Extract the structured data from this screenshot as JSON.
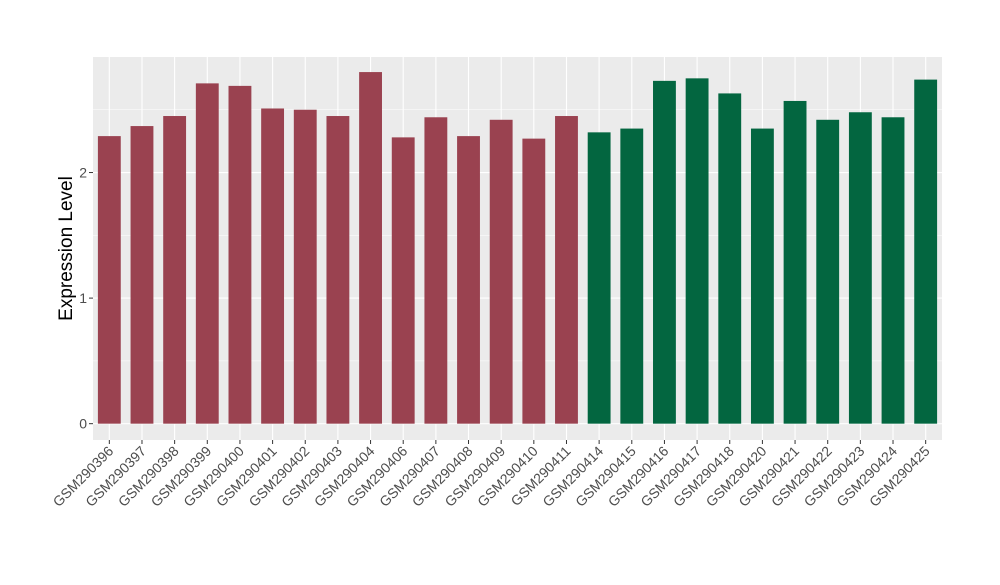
{
  "chart_data": {
    "type": "bar",
    "xlabel": "",
    "ylabel": "Expression Level",
    "ylim": [
      -0.13,
      2.92
    ],
    "yticks": [
      0,
      1,
      2
    ],
    "grid": true,
    "legend": "none",
    "categories": [
      "GSM290396",
      "GSM290397",
      "GSM290398",
      "GSM290399",
      "GSM290400",
      "GSM290401",
      "GSM290402",
      "GSM290403",
      "GSM290404",
      "GSM290406",
      "GSM290407",
      "GSM290408",
      "GSM290409",
      "GSM290410",
      "GSM290411",
      "GSM290414",
      "GSM290415",
      "GSM290416",
      "GSM290417",
      "GSM290418",
      "GSM290420",
      "GSM290421",
      "GSM290422",
      "GSM290423",
      "GSM290424",
      "GSM290425"
    ],
    "values": [
      2.29,
      2.37,
      2.45,
      2.71,
      2.69,
      2.51,
      2.5,
      2.45,
      2.8,
      2.28,
      2.44,
      2.29,
      2.42,
      2.27,
      2.45,
      2.32,
      2.35,
      2.73,
      2.75,
      2.63,
      2.35,
      2.57,
      2.42,
      2.48,
      2.44,
      2.74
    ],
    "groups": [
      1,
      1,
      1,
      1,
      1,
      1,
      1,
      1,
      1,
      1,
      1,
      1,
      1,
      1,
      1,
      2,
      2,
      2,
      2,
      2,
      2,
      2,
      2,
      2,
      2,
      2
    ],
    "colors": {
      "group1": "#9a4250",
      "group2": "#036640",
      "panel": "#ebebeb",
      "grid": "#ffffff"
    }
  }
}
